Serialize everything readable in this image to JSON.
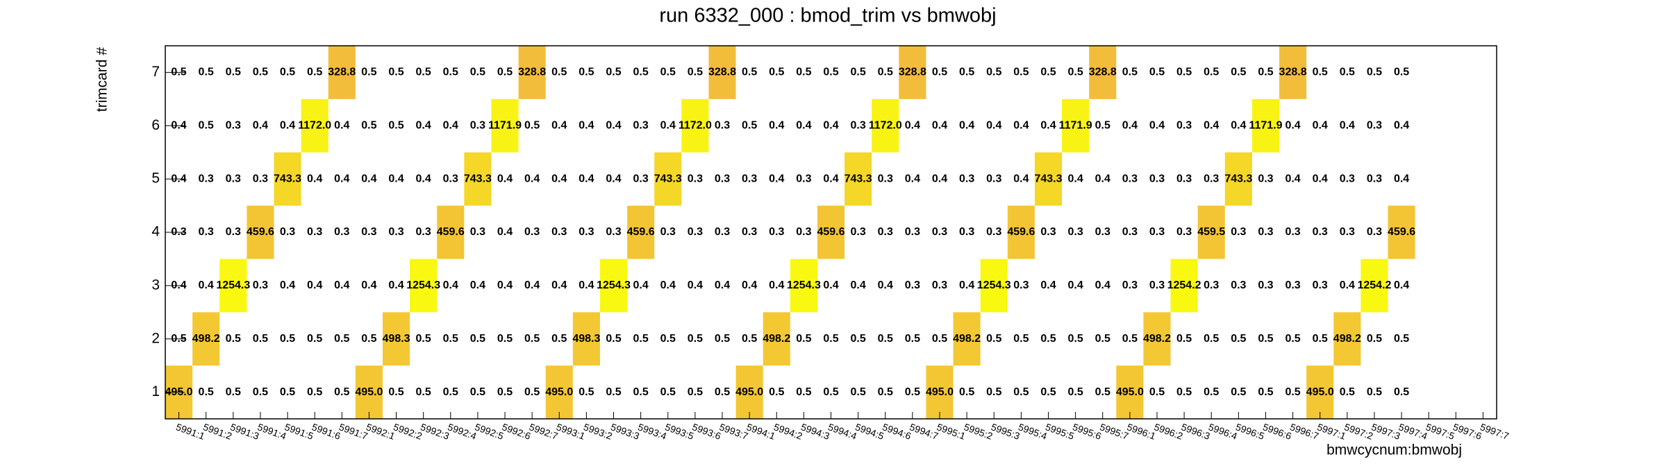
{
  "chart_data": {
    "type": "heatmap",
    "title": "run 6332_000 : bmod_trim vs bmwobj",
    "x_label": "bmwcycnum:bmwobj",
    "y_label": "trimcard #",
    "x_categories": [
      "5991:1",
      "5991:2",
      "5991:3",
      "5991:4",
      "5991:5",
      "5991:6",
      "5991:7",
      "5992:1",
      "5992:2",
      "5992:3",
      "5992:4",
      "5992:5",
      "5992:6",
      "5992:7",
      "5993:1",
      "5993:2",
      "5993:3",
      "5993:4",
      "5993:5",
      "5993:6",
      "5993:7",
      "5994:1",
      "5994:2",
      "5994:3",
      "5994:4",
      "5994:5",
      "5994:6",
      "5994:7",
      "5995:1",
      "5995:2",
      "5995:3",
      "5995:4",
      "5995:5",
      "5995:6",
      "5995:7",
      "5996:1",
      "5996:2",
      "5996:3",
      "5996:4",
      "5996:5",
      "5996:6",
      "5996:7",
      "5997:1",
      "5997:2",
      "5997:3",
      "5997:4",
      "5997:5",
      "5997:6",
      "5997:7"
    ],
    "y_categories": [
      "1",
      "2",
      "3",
      "4",
      "5",
      "6",
      "7"
    ],
    "zlim": [
      300,
      1300
    ],
    "colors": [
      "#f2bb3c",
      "#f9fb0e"
    ],
    "values": [
      [
        495.0,
        0.5,
        0.5,
        0.5,
        0.5,
        0.5,
        0.5,
        495.0,
        0.5,
        0.5,
        0.5,
        0.5,
        0.5,
        0.5,
        495.0,
        0.5,
        0.5,
        0.5,
        0.5,
        0.5,
        0.5,
        495.0,
        0.5,
        0.5,
        0.5,
        0.5,
        0.5,
        0.5,
        495.0,
        0.5,
        0.5,
        0.5,
        0.5,
        0.5,
        0.5,
        495.0,
        0.5,
        0.5,
        0.5,
        0.5,
        0.5,
        0.5,
        495.0,
        0.5,
        0.5,
        0.5,
        null,
        null,
        null
      ],
      [
        0.5,
        498.2,
        0.5,
        0.5,
        0.5,
        0.5,
        0.5,
        0.5,
        498.3,
        0.5,
        0.5,
        0.5,
        0.5,
        0.5,
        0.5,
        498.3,
        0.5,
        0.5,
        0.5,
        0.5,
        0.5,
        0.5,
        498.2,
        0.5,
        0.5,
        0.5,
        0.5,
        0.5,
        0.5,
        498.2,
        0.5,
        0.5,
        0.5,
        0.5,
        0.5,
        0.5,
        498.2,
        0.5,
        0.5,
        0.5,
        0.5,
        0.5,
        0.5,
        498.2,
        0.5,
        0.5,
        null,
        null,
        null
      ],
      [
        0.4,
        0.4,
        1254.3,
        0.3,
        0.4,
        0.4,
        0.4,
        0.4,
        0.4,
        1254.3,
        0.4,
        0.4,
        0.4,
        0.4,
        0.4,
        0.4,
        1254.3,
        0.4,
        0.4,
        0.4,
        0.4,
        0.4,
        0.4,
        1254.3,
        0.4,
        0.4,
        0.4,
        0.3,
        0.3,
        0.4,
        1254.3,
        0.3,
        0.4,
        0.4,
        0.4,
        0.3,
        0.3,
        1254.2,
        0.3,
        0.3,
        0.3,
        0.3,
        0.3,
        0.4,
        1254.2,
        0.4,
        null,
        null,
        null
      ],
      [
        0.3,
        0.3,
        0.3,
        459.6,
        0.3,
        0.3,
        0.3,
        0.3,
        0.3,
        0.3,
        459.6,
        0.3,
        0.4,
        0.3,
        0.3,
        0.3,
        0.3,
        459.6,
        0.3,
        0.3,
        0.3,
        0.3,
        0.3,
        0.3,
        459.6,
        0.3,
        0.3,
        0.3,
        0.3,
        0.3,
        0.3,
        459.6,
        0.3,
        0.3,
        0.3,
        0.3,
        0.3,
        0.3,
        459.5,
        0.3,
        0.3,
        0.3,
        0.3,
        0.3,
        0.3,
        459.6,
        null,
        null,
        null
      ],
      [
        0.4,
        0.3,
        0.3,
        0.3,
        743.3,
        0.4,
        0.4,
        0.4,
        0.4,
        0.4,
        0.3,
        743.3,
        0.4,
        0.4,
        0.4,
        0.4,
        0.4,
        0.3,
        743.3,
        0.3,
        0.3,
        0.3,
        0.4,
        0.3,
        0.4,
        743.3,
        0.3,
        0.4,
        0.4,
        0.3,
        0.3,
        0.4,
        743.3,
        0.4,
        0.4,
        0.3,
        0.3,
        0.3,
        0.3,
        743.3,
        0.3,
        0.4,
        0.4,
        0.3,
        0.3,
        0.4,
        null,
        null,
        null
      ],
      [
        0.4,
        0.5,
        0.3,
        0.4,
        0.4,
        1172.0,
        0.4,
        0.5,
        0.5,
        0.4,
        0.4,
        0.3,
        1171.9,
        0.5,
        0.4,
        0.4,
        0.4,
        0.3,
        0.4,
        1172.0,
        0.3,
        0.5,
        0.4,
        0.4,
        0.4,
        0.3,
        1172.0,
        0.4,
        0.4,
        0.4,
        0.4,
        0.4,
        0.4,
        1171.9,
        0.5,
        0.4,
        0.4,
        0.3,
        0.4,
        0.4,
        1171.9,
        0.4,
        0.4,
        0.4,
        0.3,
        0.4,
        null,
        null,
        null
      ],
      [
        0.5,
        0.5,
        0.5,
        0.5,
        0.5,
        0.5,
        328.8,
        0.5,
        0.5,
        0.5,
        0.5,
        0.5,
        0.5,
        328.8,
        0.5,
        0.5,
        0.5,
        0.5,
        0.5,
        0.5,
        328.8,
        0.5,
        0.5,
        0.5,
        0.5,
        0.5,
        0.5,
        328.8,
        0.5,
        0.5,
        0.5,
        0.5,
        0.5,
        0.5,
        328.8,
        0.5,
        0.5,
        0.5,
        0.5,
        0.5,
        0.5,
        328.8,
        0.5,
        0.5,
        0.5,
        0.5,
        null,
        null,
        null
      ]
    ],
    "value_labels": [
      [
        "495.0",
        "0.5",
        "0.5",
        "0.5",
        "0.5",
        "0.5",
        "0.5",
        "495.0",
        "0.5",
        "0.5",
        "0.5",
        "0.5",
        "0.5",
        "0.5",
        "495.0",
        "0.5",
        "0.5",
        "0.5",
        "0.5",
        "0.5",
        "0.5",
        "495.0",
        "0.5",
        "0.5",
        "0.5",
        "0.5",
        "0.5",
        "0.5",
        "495.0",
        "0.5",
        "0.5",
        "0.5",
        "0.5",
        "0.5",
        "0.5",
        "495.0",
        "0.5",
        "0.5",
        "0.5",
        "0.5",
        "0.5",
        "0.5",
        "495.0",
        "0.5",
        "0.5",
        "0.5",
        null,
        null,
        null
      ],
      [
        "0.5",
        "498.2",
        "0.5",
        "0.5",
        "0.5",
        "0.5",
        "0.5",
        "0.5",
        "498.3",
        "0.5",
        "0.5",
        "0.5",
        "0.5",
        "0.5",
        "0.5",
        "498.3",
        "0.5",
        "0.5",
        "0.5",
        "0.5",
        "0.5",
        "0.5",
        "498.2",
        "0.5",
        "0.5",
        "0.5",
        "0.5",
        "0.5",
        "0.5",
        "498.2",
        "0.5",
        "0.5",
        "0.5",
        "0.5",
        "0.5",
        "0.5",
        "498.2",
        "0.5",
        "0.5",
        "0.5",
        "0.5",
        "0.5",
        "0.5",
        "498.2",
        "0.5",
        "0.5",
        null,
        null,
        null
      ],
      [
        "0.4",
        "0.4",
        "1254.3",
        "0.3",
        "0.4",
        "0.4",
        "0.4",
        "0.4",
        "0.4",
        "1254.3",
        "0.4",
        "0.4",
        "0.4",
        "0.4",
        "0.4",
        "0.4",
        "1254.3",
        "0.4",
        "0.4",
        "0.4",
        "0.4",
        "0.4",
        "0.4",
        "1254.3",
        "0.4",
        "0.4",
        "0.4",
        "0.3",
        "0.3",
        "0.4",
        "1254.3",
        "0.3",
        "0.4",
        "0.4",
        "0.4",
        "0.3",
        "0.3",
        "1254.2",
        "0.3",
        "0.3",
        "0.3",
        "0.3",
        "0.3",
        "0.4",
        "1254.2",
        "0.4",
        null,
        null,
        null
      ],
      [
        "0.3",
        "0.3",
        "0.3",
        "459.6",
        "0.3",
        "0.3",
        "0.3",
        "0.3",
        "0.3",
        "0.3",
        "459.6",
        "0.3",
        "0.4",
        "0.3",
        "0.3",
        "0.3",
        "0.3",
        "459.6",
        "0.3",
        "0.3",
        "0.3",
        "0.3",
        "0.3",
        "0.3",
        "459.6",
        "0.3",
        "0.3",
        "0.3",
        "0.3",
        "0.3",
        "0.3",
        "459.6",
        "0.3",
        "0.3",
        "0.3",
        "0.3",
        "0.3",
        "0.3",
        "459.5",
        "0.3",
        "0.3",
        "0.3",
        "0.3",
        "0.3",
        "0.3",
        "459.6",
        null,
        null,
        null
      ],
      [
        "0.4",
        "0.3",
        "0.3",
        "0.3",
        "743.3",
        "0.4",
        "0.4",
        "0.4",
        "0.4",
        "0.4",
        "0.3",
        "743.3",
        "0.4",
        "0.4",
        "0.4",
        "0.4",
        "0.4",
        "0.3",
        "743.3",
        "0.3",
        "0.3",
        "0.3",
        "0.4",
        "0.3",
        "0.4",
        "743.3",
        "0.3",
        "0.4",
        "0.4",
        "0.3",
        "0.3",
        "0.4",
        "743.3",
        "0.4",
        "0.4",
        "0.3",
        "0.3",
        "0.3",
        "0.3",
        "743.3",
        "0.3",
        "0.4",
        "0.4",
        "0.3",
        "0.3",
        "0.4",
        null,
        null,
        null
      ],
      [
        "0.4",
        "0.5",
        "0.3",
        "0.4",
        "0.4",
        "1172.0",
        "0.4",
        "0.5",
        "0.5",
        "0.4",
        "0.4",
        "0.3",
        "1171.9",
        "0.5",
        "0.4",
        "0.4",
        "0.4",
        "0.3",
        "0.4",
        "1172.0",
        "0.3",
        "0.5",
        "0.4",
        "0.4",
        "0.4",
        "0.3",
        "1172.0",
        "0.4",
        "0.4",
        "0.4",
        "0.4",
        "0.4",
        "0.4",
        "1171.9",
        "0.5",
        "0.4",
        "0.4",
        "0.3",
        "0.4",
        "0.4",
        "1171.9",
        "0.4",
        "0.4",
        "0.4",
        "0.3",
        "0.4",
        null,
        null,
        null
      ],
      [
        "0.5",
        "0.5",
        "0.5",
        "0.5",
        "0.5",
        "0.5",
        "328.8",
        "0.5",
        "0.5",
        "0.5",
        "0.5",
        "0.5",
        "0.5",
        "328.8",
        "0.5",
        "0.5",
        "0.5",
        "0.5",
        "0.5",
        "0.5",
        "328.8",
        "0.5",
        "0.5",
        "0.5",
        "0.5",
        "0.5",
        "0.5",
        "328.8",
        "0.5",
        "0.5",
        "0.5",
        "0.5",
        "0.5",
        "0.5",
        "328.8",
        "0.5",
        "0.5",
        "0.5",
        "0.5",
        "0.5",
        "0.5",
        "328.8",
        "0.5",
        "0.5",
        "0.5",
        "0.5",
        null,
        null,
        null
      ]
    ]
  }
}
